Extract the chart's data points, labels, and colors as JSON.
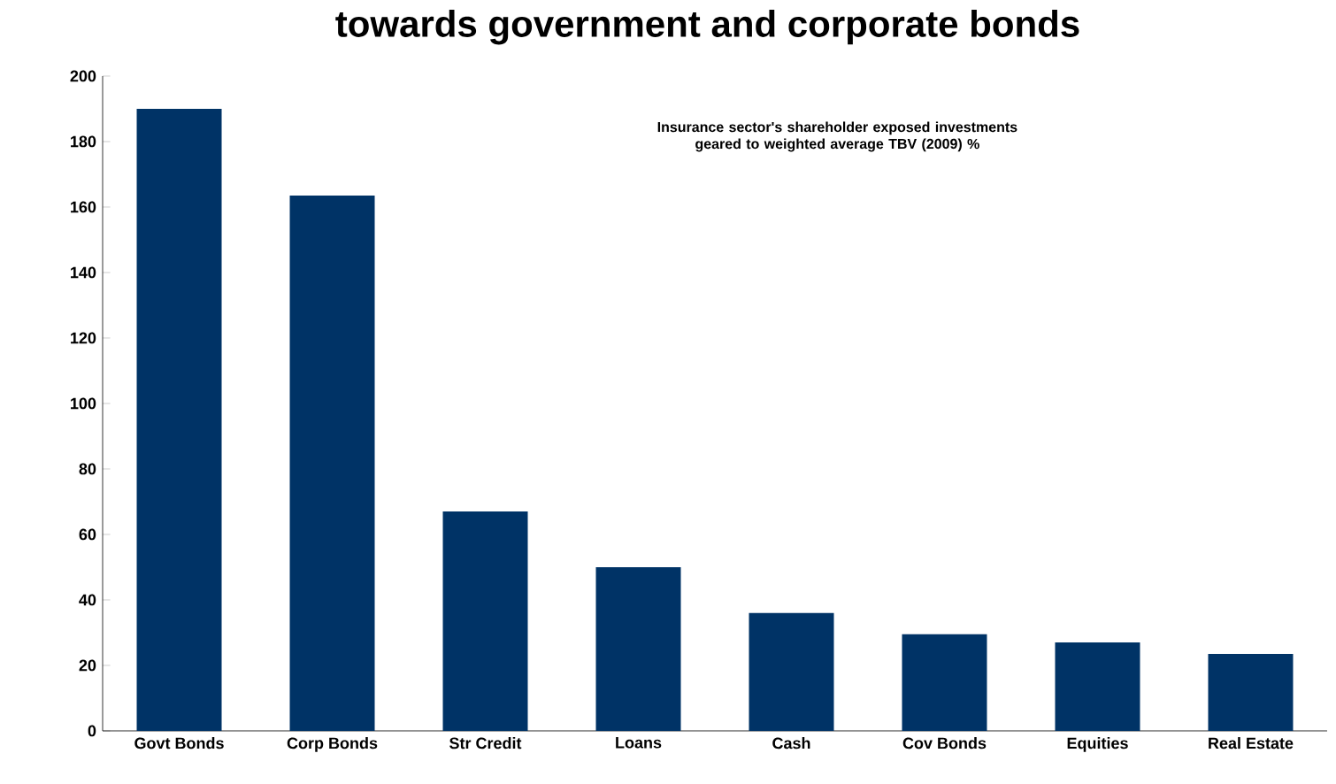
{
  "chart_data": {
    "type": "bar",
    "title": "towards government and corporate bonds",
    "annotations": [
      "Insurance sector's shareholder exposed investments geared to weighted average TBV (2009) %"
    ],
    "categories": [
      "Govt Bonds",
      "Corp Bonds",
      "Str Credit",
      "Loans",
      "Cash",
      "Cov Bonds",
      "Equities",
      "Real Estate"
    ],
    "values": [
      190,
      163.5,
      67,
      50,
      36,
      29.5,
      27,
      23.5
    ],
    "color": "#003366",
    "ylim": [
      0,
      200
    ],
    "yticks": [
      0,
      20,
      40,
      60,
      80,
      100,
      120,
      140,
      160,
      180,
      200
    ],
    "grid": false
  }
}
